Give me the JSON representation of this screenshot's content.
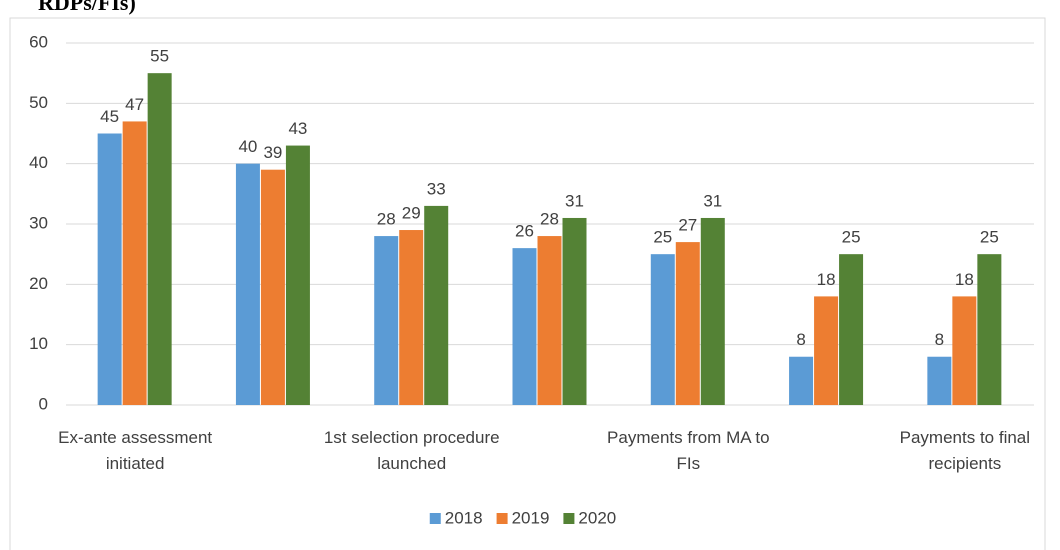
{
  "chart_data": {
    "type": "bar",
    "title": "RDPs/FIs)",
    "categories": [
      "Ex-ante assessment initiated",
      null,
      "1st selection procedure launched",
      null,
      "Payments from MA to FIs",
      null,
      "Payments to final recipients"
    ],
    "series": [
      {
        "name": "2018",
        "color": "#5b9bd5",
        "values": [
          45,
          40,
          28,
          26,
          25,
          8,
          8
        ]
      },
      {
        "name": "2019",
        "color": "#ed7d31",
        "values": [
          47,
          39,
          29,
          28,
          27,
          18,
          18
        ]
      },
      {
        "name": "2020",
        "color": "#548235",
        "values": [
          55,
          43,
          33,
          31,
          31,
          25,
          25
        ]
      }
    ],
    "ylim": [
      0,
      60
    ],
    "yticks": [
      0,
      10,
      20,
      30,
      40,
      50,
      60
    ],
    "grid": true,
    "legend": "bottom"
  }
}
